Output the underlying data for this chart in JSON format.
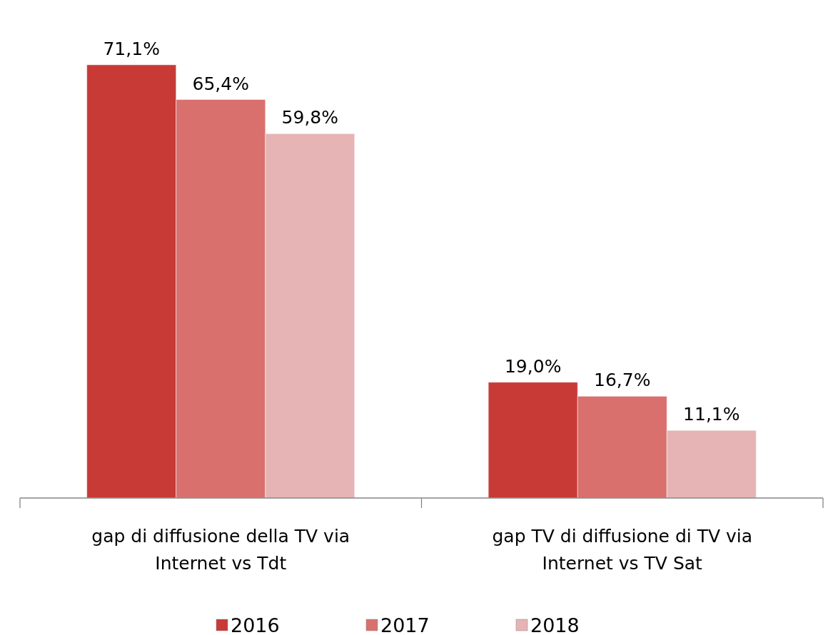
{
  "chart_data": {
    "type": "bar",
    "categories": [
      "gap di diffusione della TV via Internet vs Tdt",
      "gap TV di diffusione di TV via Internet vs TV Sat"
    ],
    "series": [
      {
        "name": "2016",
        "color": "#c83a36",
        "values": [
          71.1,
          19.0
        ],
        "value_labels": [
          "71,1%",
          "19,0%"
        ]
      },
      {
        "name": "2017",
        "color": "#d9706e",
        "values": [
          65.4,
          16.7
        ],
        "value_labels": [
          "65,4%",
          "16,7%"
        ]
      },
      {
        "name": "2018",
        "color": "#e6b4b4",
        "values": [
          59.8,
          11.1
        ],
        "value_labels": [
          "59,8%",
          "11,1%"
        ]
      }
    ],
    "legend": "bottom"
  }
}
